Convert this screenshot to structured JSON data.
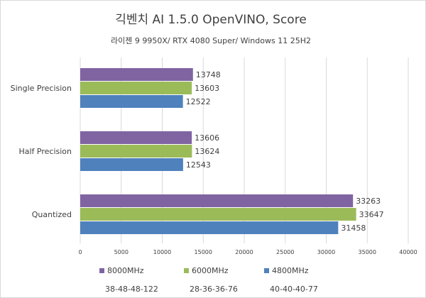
{
  "chart_data": {
    "type": "bar",
    "orientation": "horizontal",
    "title": "긱벤치 AI 1.5.0 OpenVINO, Score",
    "subtitle": "라이젠 9 9950X/ RTX 4080 Super/ Windows 11 25H2",
    "categories": [
      "Single Precision",
      "Half Precision",
      "Quantized"
    ],
    "series": [
      {
        "name": "8000MHz",
        "timing": "38-48-48-122",
        "color": "#8064a2",
        "values": [
          13748,
          13606,
          33263
        ]
      },
      {
        "name": "6000MHz",
        "timing": "28-36-36-76",
        "color": "#9bbb59",
        "values": [
          13603,
          13624,
          33647
        ]
      },
      {
        "name": "4800MHz",
        "timing": "40-40-40-77",
        "color": "#4f81bd",
        "values": [
          12522,
          12543,
          31458
        ]
      }
    ],
    "xlim": [
      0,
      40000
    ],
    "xticks": [
      0,
      5000,
      10000,
      15000,
      20000,
      25000,
      30000,
      35000,
      40000
    ],
    "grid": true,
    "legend_position": "bottom",
    "xlabel": "",
    "ylabel": ""
  },
  "colors": {
    "grid": "#d9d9d9",
    "text": "#404040"
  }
}
